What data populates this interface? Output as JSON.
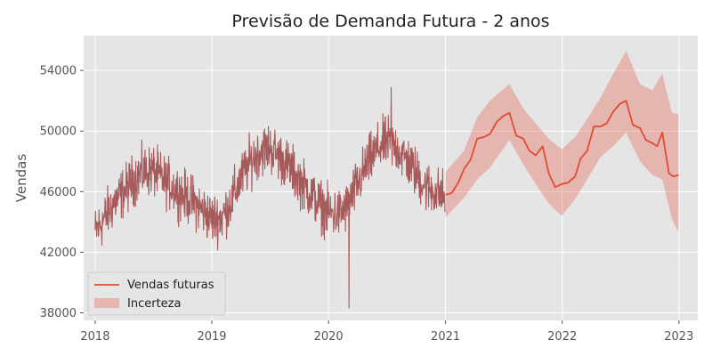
{
  "chart_data": {
    "type": "line",
    "title": "Previsão de Demanda Futura - 2 anos",
    "xlabel": "",
    "ylabel": "Vendas",
    "xlim": [
      "2017-11-26",
      "2023-03-01"
    ],
    "ylim": [
      37500,
      56300
    ],
    "x_ticks": [
      "2018",
      "2019",
      "2020",
      "2021",
      "2022",
      "2023"
    ],
    "y_ticks": [
      38000,
      42000,
      46000,
      50000,
      54000
    ],
    "grid": true,
    "legend_position": "lower-left",
    "colors": {
      "background": "#e5e5e5",
      "history": "#a04a4a",
      "forecast": "#e24a33",
      "uncertainty": "#e24a33",
      "grid": "#ffffff"
    },
    "series": [
      {
        "kind": "history",
        "x_start": "2018-01-01",
        "x_end": "2020-12-31",
        "points": [
          [
            "2018-01-01",
            43300
          ],
          [
            "2018-02-01",
            44300
          ],
          [
            "2018-03-01",
            45300
          ],
          [
            "2018-04-01",
            46000
          ],
          [
            "2018-05-01",
            46800
          ],
          [
            "2018-06-01",
            47300
          ],
          [
            "2018-07-01",
            47400
          ],
          [
            "2018-08-01",
            46800
          ],
          [
            "2018-09-01",
            46300
          ],
          [
            "2018-10-01",
            45800
          ],
          [
            "2018-11-01",
            45400
          ],
          [
            "2018-12-01",
            44800
          ],
          [
            "2019-01-01",
            44200
          ],
          [
            "2019-02-01",
            44300
          ],
          [
            "2019-03-01",
            45300
          ],
          [
            "2019-04-01",
            46800
          ],
          [
            "2019-05-01",
            48000
          ],
          [
            "2019-06-01",
            48700
          ],
          [
            "2019-07-01",
            48900
          ],
          [
            "2019-08-01",
            48300
          ],
          [
            "2019-09-01",
            47600
          ],
          [
            "2019-10-01",
            46800
          ],
          [
            "2019-11-01",
            46000
          ],
          [
            "2019-12-01",
            45200
          ],
          [
            "2020-01-01",
            44600
          ],
          [
            "2020-02-01",
            44500
          ],
          [
            "2020-03-01",
            45000
          ],
          [
            "2020-04-01",
            46500
          ],
          [
            "2020-05-01",
            47800
          ],
          [
            "2020-06-01",
            48800
          ],
          [
            "2020-07-01",
            49300
          ],
          [
            "2020-08-01",
            48900
          ],
          [
            "2020-09-01",
            48100
          ],
          [
            "2020-10-01",
            47200
          ],
          [
            "2020-11-01",
            46300
          ],
          [
            "2020-12-31",
            45700
          ]
        ],
        "noise_amplitude": 1500,
        "min": {
          "x": "2020-03-05",
          "y": 38300
        },
        "max": {
          "x": "2020-07-15",
          "y": 52900
        }
      },
      {
        "kind": "forecast",
        "name": "Vendas futuras",
        "points": [
          [
            "2021-01-01",
            45800
          ],
          [
            "2021-01-20",
            45900
          ],
          [
            "2021-02-10",
            46600
          ],
          [
            "2021-02-28",
            47500
          ],
          [
            "2021-03-20",
            48100
          ],
          [
            "2021-04-10",
            49500
          ],
          [
            "2021-05-01",
            49600
          ],
          [
            "2021-05-20",
            49800
          ],
          [
            "2021-06-10",
            50600
          ],
          [
            "2021-07-01",
            51000
          ],
          [
            "2021-07-20",
            51200
          ],
          [
            "2021-08-10",
            49700
          ],
          [
            "2021-09-01",
            49500
          ],
          [
            "2021-09-20",
            48700
          ],
          [
            "2021-10-10",
            48400
          ],
          [
            "2021-11-01",
            49000
          ],
          [
            "2021-11-20",
            47200
          ],
          [
            "2021-12-10",
            46300
          ],
          [
            "2021-12-31",
            46500
          ],
          [
            "2022-01-20",
            46600
          ],
          [
            "2022-02-10",
            47000
          ],
          [
            "2022-02-28",
            48200
          ],
          [
            "2022-03-20",
            48700
          ],
          [
            "2022-04-10",
            50300
          ],
          [
            "2022-05-01",
            50300
          ],
          [
            "2022-05-20",
            50500
          ],
          [
            "2022-06-10",
            51300
          ],
          [
            "2022-07-01",
            51800
          ],
          [
            "2022-07-20",
            52000
          ],
          [
            "2022-08-10",
            50400
          ],
          [
            "2022-09-01",
            50200
          ],
          [
            "2022-09-20",
            49400
          ],
          [
            "2022-10-10",
            49200
          ],
          [
            "2022-10-25",
            49000
          ],
          [
            "2022-11-10",
            49900
          ],
          [
            "2022-12-01",
            47200
          ],
          [
            "2022-12-15",
            47000
          ],
          [
            "2022-12-31",
            47100
          ]
        ]
      },
      {
        "kind": "band",
        "name": "Incerteza",
        "x": [
          "2021-01-01",
          "2021-02-28",
          "2021-04-10",
          "2021-05-20",
          "2021-07-20",
          "2021-09-01",
          "2021-10-10",
          "2021-11-20",
          "2021-12-31",
          "2022-02-10",
          "2022-03-20",
          "2022-05-01",
          "2022-06-10",
          "2022-07-20",
          "2022-09-01",
          "2022-10-10",
          "2022-11-10",
          "2022-12-10",
          "2022-12-31"
        ],
        "lower": [
          44300,
          45600,
          46800,
          47600,
          49400,
          47800,
          46500,
          45200,
          44400,
          45500,
          46800,
          48300,
          49000,
          49900,
          48000,
          47100,
          46800,
          44200,
          43300
        ],
        "upper": [
          47300,
          48700,
          50900,
          52000,
          53100,
          51500,
          50500,
          49500,
          48800,
          49600,
          50800,
          52200,
          53800,
          55300,
          53100,
          52700,
          53800,
          51200,
          51100
        ]
      }
    ]
  }
}
